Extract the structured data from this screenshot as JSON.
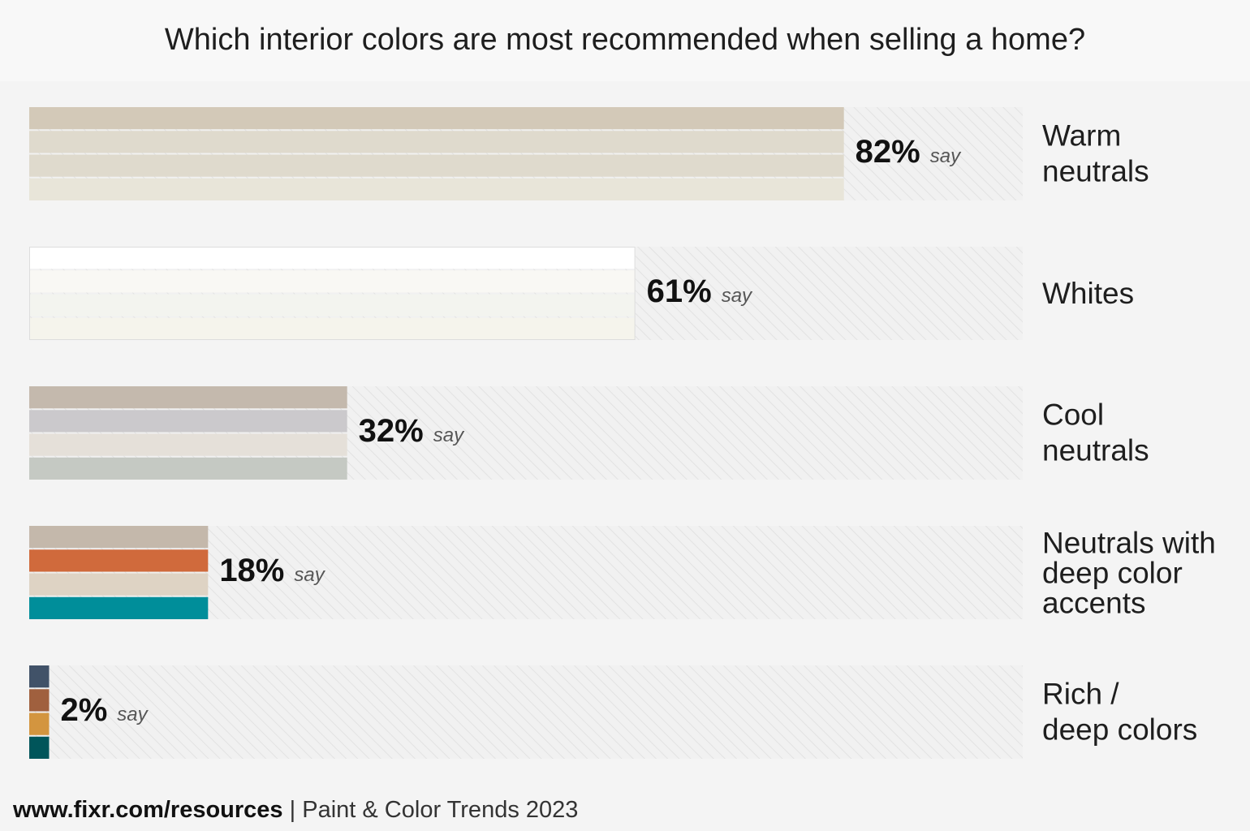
{
  "chart_data": {
    "type": "bar",
    "title": "Which interior colors are most recommended when selling a home?",
    "categories": [
      "Warm\nneutrals",
      "Whites",
      "Cool\nneutrals",
      "Neutrals with\ndeep color\naccents",
      "Rich /\ndeep colors"
    ],
    "values": [
      82,
      61,
      32,
      18,
      2
    ],
    "value_labels": [
      "82%",
      "61%",
      "32%",
      "18%",
      "2%"
    ],
    "annotation": "say",
    "colors": [
      [
        "#d3c9b8",
        "#dfdacd",
        "#dfdacd",
        "#e8e5d9"
      ],
      [
        "#ffffff",
        "#f9f8f4",
        "#f3f4ef",
        "#f5f4ec"
      ],
      [
        "#c4b9ad",
        "#cbc9cc",
        "#e5e0d9",
        "#c5c9c3"
      ],
      [
        "#c4b8ab",
        "#d06a3c",
        "#ded3c4",
        "#008e9a"
      ],
      [
        "#415268",
        "#a0603e",
        "#d3953f",
        "#00555a"
      ]
    ],
    "xlim": [
      0,
      100
    ],
    "source": {
      "site": "www.fixr.com/resources",
      "separator": "|",
      "text": "Paint & Color Trends 2023"
    }
  }
}
